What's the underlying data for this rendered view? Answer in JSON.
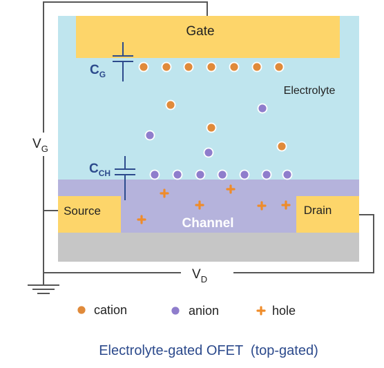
{
  "labels": {
    "gate": "Gate",
    "electrolyte": "Electrolyte",
    "source": "Source",
    "drain": "Drain",
    "channel": "Channel",
    "vg_main": "V",
    "vg_sub": "G",
    "vd_main": "V",
    "vd_sub": "D",
    "cg_main": "C",
    "cg_sub": "G",
    "cch_main": "C",
    "cch_sub": "CH"
  },
  "legend": {
    "cation": "cation",
    "anion": "anion",
    "hole": "hole"
  },
  "caption": "Electrolyte-gated OFET  (top-gated)",
  "colors": {
    "electrolyte": "#bfe5ee",
    "gate": "#fdd56a",
    "channel": "#b5b3dc",
    "substrate": "#c6c6c6",
    "cation": "#e08a3a",
    "anion": "#8f7dcc",
    "hole": "#ef8c2a",
    "capacitor": "#2c4a8c",
    "caption": "#2c4a8c"
  }
}
